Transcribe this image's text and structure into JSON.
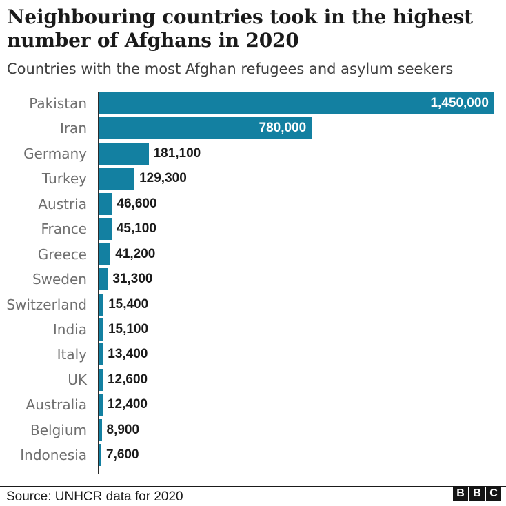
{
  "header": {
    "title_line1": "Neighbouring countries took in the highest",
    "title_line2": "number of Afghans in 2020",
    "subtitle": "Countries with the most Afghan refugees and asylum seekers"
  },
  "chart_data": {
    "type": "bar",
    "orientation": "horizontal",
    "title": "Neighbouring countries took in the highest number of Afghans in 2020",
    "subtitle": "Countries with the most Afghan refugees and asylum seekers",
    "categories": [
      "Pakistan",
      "Iran",
      "Germany",
      "Turkey",
      "Austria",
      "France",
      "Greece",
      "Sweden",
      "Switzerland",
      "India",
      "Italy",
      "UK",
      "Australia",
      "Belgium",
      "Indonesia"
    ],
    "values": [
      1450000,
      780000,
      181100,
      129300,
      46600,
      45100,
      41200,
      31300,
      15400,
      15100,
      13400,
      12600,
      12400,
      8900,
      7600
    ],
    "value_labels": [
      "1,450,000",
      "780,000",
      "181,100",
      "129,300",
      "46,600",
      "45,100",
      "41,200",
      "31,300",
      "15,400",
      "15,100",
      "13,400",
      "12,600",
      "12,400",
      "8,900",
      "7,600"
    ],
    "xlim": [
      0,
      1450000
    ],
    "grid": false,
    "legend": false,
    "bar_color": "#1380A1",
    "category_label_color": "#6f6f6f",
    "value_label_inside_color": "#ffffff",
    "value_label_outside_color": "#1a1a1a",
    "axis_color": "#2b2b2b"
  },
  "footer": {
    "source": "Source: UNHCR data for 2020",
    "logo_letters": [
      "B",
      "B",
      "C"
    ]
  }
}
